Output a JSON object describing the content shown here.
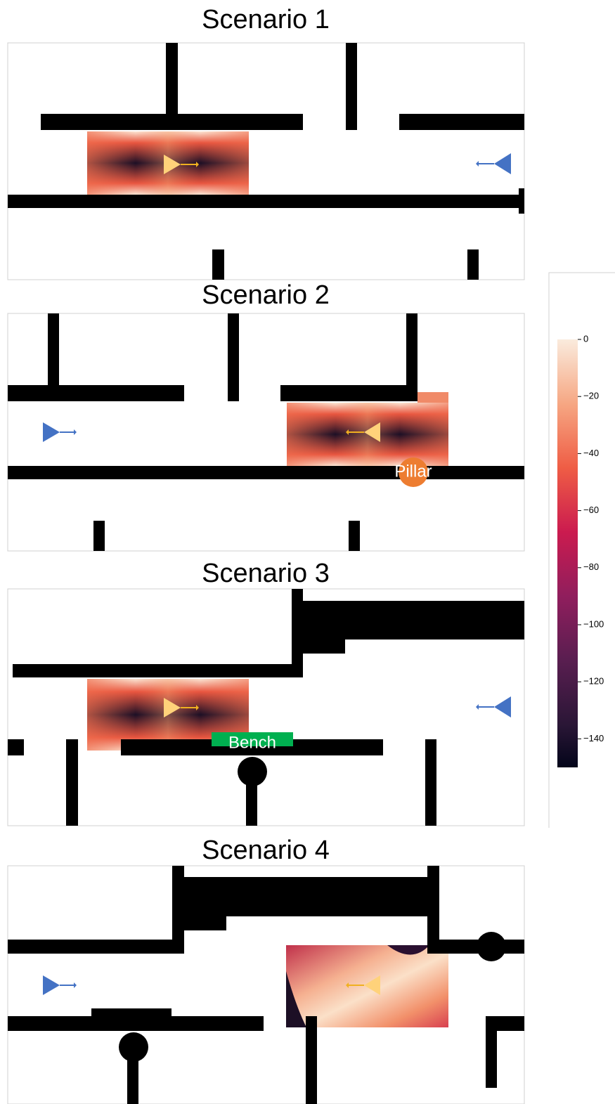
{
  "scenarios": [
    {
      "title": "Scenario 1"
    },
    {
      "title": "Scenario 2",
      "label": "Pillar"
    },
    {
      "title": "Scenario 3",
      "label": "Bench"
    },
    {
      "title": "Scenario 4"
    }
  ],
  "colorbar": {
    "lim": [
      -150,
      0
    ],
    "ticks": [
      {
        "value": 0,
        "label": "0"
      },
      {
        "value": -20,
        "label": "−20"
      },
      {
        "value": -40,
        "label": "−40"
      },
      {
        "value": -60,
        "label": "−60"
      },
      {
        "value": -80,
        "label": "−80"
      },
      {
        "value": -100,
        "label": "−100"
      },
      {
        "value": -120,
        "label": "−120"
      },
      {
        "value": -140,
        "label": "−140"
      }
    ]
  }
}
